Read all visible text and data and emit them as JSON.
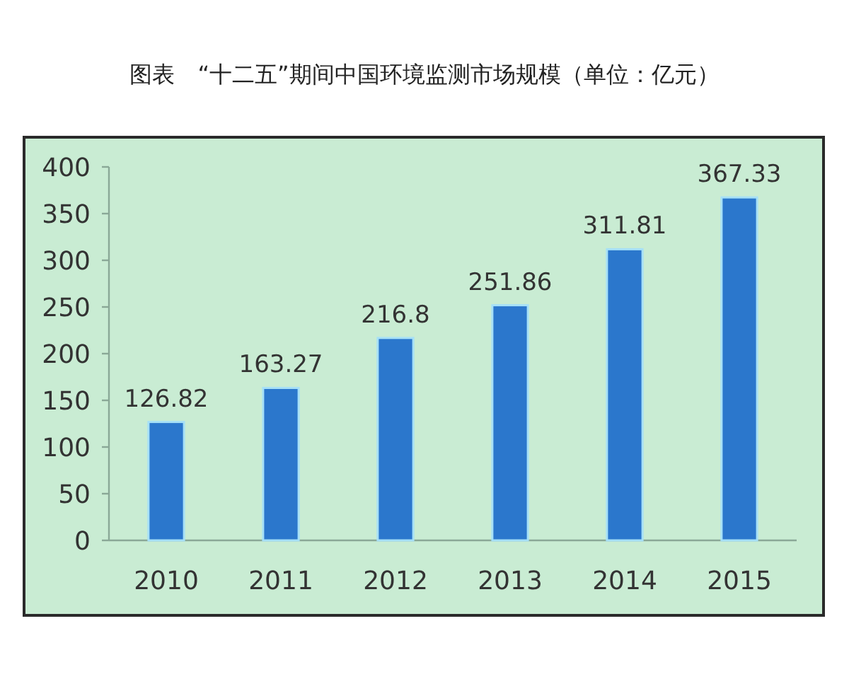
{
  "chart_data": {
    "type": "bar",
    "title": "图表　“十二五”期间中国环境监测市场规模（单位：亿元）",
    "categories": [
      "2010",
      "2011",
      "2012",
      "2013",
      "2014",
      "2015"
    ],
    "values": [
      126.82,
      163.27,
      216.8,
      251.86,
      311.81,
      367.33
    ],
    "color": "#2b77cc",
    "ylim": [
      0,
      400
    ],
    "yticks": [
      0,
      50,
      100,
      150,
      200,
      250,
      300,
      350,
      400
    ],
    "grid": false,
    "data_labels": true
  }
}
